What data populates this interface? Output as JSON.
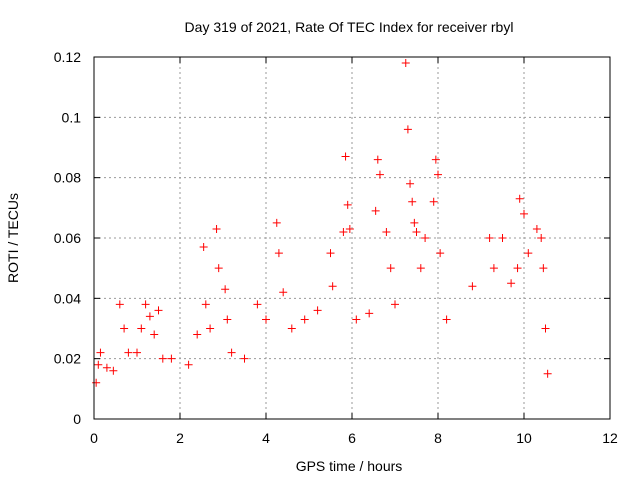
{
  "chart_data": {
    "type": "scatter",
    "title": "Day 319 of 2021, Rate Of TEC Index for receiver rbyl",
    "xlabel": "GPS time / hours",
    "ylabel": "ROTI / TECUs",
    "xlim": [
      0,
      12
    ],
    "ylim": [
      0,
      0.12
    ],
    "x_ticks": [
      "0",
      "2",
      "4",
      "6",
      "8",
      "10",
      "12"
    ],
    "y_ticks": [
      "0",
      "0.02",
      "0.04",
      "0.06",
      "0.08",
      "0.1",
      "0.12"
    ],
    "grid": true,
    "marker": "+",
    "color": "#ff0000",
    "series": [
      {
        "name": "ROTI",
        "points": [
          [
            0.05,
            0.012
          ],
          [
            0.1,
            0.018
          ],
          [
            0.15,
            0.022
          ],
          [
            0.3,
            0.017
          ],
          [
            0.45,
            0.016
          ],
          [
            0.6,
            0.038
          ],
          [
            0.7,
            0.03
          ],
          [
            0.8,
            0.022
          ],
          [
            1.0,
            0.022
          ],
          [
            1.1,
            0.03
          ],
          [
            1.2,
            0.038
          ],
          [
            1.3,
            0.034
          ],
          [
            1.4,
            0.028
          ],
          [
            1.5,
            0.036
          ],
          [
            1.6,
            0.02
          ],
          [
            1.8,
            0.02
          ],
          [
            2.2,
            0.018
          ],
          [
            2.4,
            0.028
          ],
          [
            2.55,
            0.057
          ],
          [
            2.6,
            0.038
          ],
          [
            2.7,
            0.03
          ],
          [
            2.85,
            0.063
          ],
          [
            2.9,
            0.05
          ],
          [
            3.05,
            0.043
          ],
          [
            3.1,
            0.033
          ],
          [
            3.2,
            0.022
          ],
          [
            3.5,
            0.02
          ],
          [
            3.8,
            0.038
          ],
          [
            4.0,
            0.033
          ],
          [
            4.25,
            0.065
          ],
          [
            4.3,
            0.055
          ],
          [
            4.4,
            0.042
          ],
          [
            4.6,
            0.03
          ],
          [
            4.9,
            0.033
          ],
          [
            5.2,
            0.036
          ],
          [
            5.5,
            0.055
          ],
          [
            5.55,
            0.044
          ],
          [
            5.8,
            0.062
          ],
          [
            5.85,
            0.087
          ],
          [
            5.9,
            0.071
          ],
          [
            5.95,
            0.063
          ],
          [
            6.1,
            0.033
          ],
          [
            6.4,
            0.035
          ],
          [
            6.55,
            0.069
          ],
          [
            6.6,
            0.086
          ],
          [
            6.65,
            0.081
          ],
          [
            6.8,
            0.062
          ],
          [
            6.9,
            0.05
          ],
          [
            7.0,
            0.038
          ],
          [
            7.25,
            0.118
          ],
          [
            7.3,
            0.096
          ],
          [
            7.35,
            0.078
          ],
          [
            7.4,
            0.072
          ],
          [
            7.45,
            0.065
          ],
          [
            7.5,
            0.062
          ],
          [
            7.6,
            0.05
          ],
          [
            7.7,
            0.06
          ],
          [
            7.9,
            0.072
          ],
          [
            7.95,
            0.086
          ],
          [
            8.0,
            0.081
          ],
          [
            8.05,
            0.055
          ],
          [
            8.2,
            0.033
          ],
          [
            8.8,
            0.044
          ],
          [
            9.2,
            0.06
          ],
          [
            9.3,
            0.05
          ],
          [
            9.5,
            0.06
          ],
          [
            9.7,
            0.045
          ],
          [
            9.85,
            0.05
          ],
          [
            9.9,
            0.073
          ],
          [
            10.0,
            0.068
          ],
          [
            10.1,
            0.055
          ],
          [
            10.3,
            0.063
          ],
          [
            10.4,
            0.06
          ],
          [
            10.45,
            0.05
          ],
          [
            10.5,
            0.03
          ],
          [
            10.55,
            0.015
          ]
        ]
      }
    ]
  }
}
